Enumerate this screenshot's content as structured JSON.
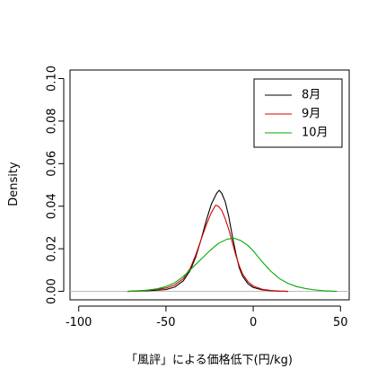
{
  "chart_data": {
    "type": "line",
    "title": "",
    "xlabel": "「風評」による価格低下(円/kg)",
    "ylabel": "Density",
    "xlim": [
      -105,
      55
    ],
    "ylim": [
      -0.004,
      0.104
    ],
    "x_ticks": [
      -100,
      -50,
      0,
      50
    ],
    "x_tick_labels": [
      "-100",
      "-50",
      "0",
      "50"
    ],
    "y_ticks": [
      0.0,
      0.02,
      0.04,
      0.06,
      0.08,
      0.1
    ],
    "y_tick_labels": [
      "0.00",
      "0.02",
      "0.04",
      "0.06",
      "0.08",
      "0.10"
    ],
    "grid": false,
    "baseline": 0,
    "legend_position": "top-right",
    "series": [
      {
        "name": "8月",
        "color": "#000000",
        "points": [
          [
            -72,
            0.0
          ],
          [
            -60,
            0.0003
          ],
          [
            -50,
            0.0008
          ],
          [
            -45,
            0.002
          ],
          [
            -40,
            0.005
          ],
          [
            -36,
            0.01
          ],
          [
            -33,
            0.016
          ],
          [
            -30,
            0.024
          ],
          [
            -27,
            0.033
          ],
          [
            -24,
            0.041
          ],
          [
            -21,
            0.046
          ],
          [
            -19.5,
            0.0475
          ],
          [
            -18,
            0.046
          ],
          [
            -16,
            0.042
          ],
          [
            -14,
            0.035
          ],
          [
            -12,
            0.026
          ],
          [
            -10,
            0.018
          ],
          [
            -8,
            0.011
          ],
          [
            -6,
            0.007
          ],
          [
            -3,
            0.0035
          ],
          [
            0,
            0.0018
          ],
          [
            5,
            0.0007
          ],
          [
            10,
            0.0003
          ],
          [
            15,
            0.0001
          ],
          [
            20,
            0.0
          ]
        ]
      },
      {
        "name": "9月",
        "color": "#dd0000",
        "points": [
          [
            -72,
            0.0
          ],
          [
            -60,
            0.0005
          ],
          [
            -50,
            0.0015
          ],
          [
            -45,
            0.003
          ],
          [
            -40,
            0.006
          ],
          [
            -36,
            0.011
          ],
          [
            -33,
            0.017
          ],
          [
            -30,
            0.024
          ],
          [
            -27,
            0.031
          ],
          [
            -24,
            0.037
          ],
          [
            -21.5,
            0.0405
          ],
          [
            -20,
            0.04
          ],
          [
            -18,
            0.038
          ],
          [
            -16,
            0.034
          ],
          [
            -14,
            0.029
          ],
          [
            -12,
            0.023
          ],
          [
            -10,
            0.017
          ],
          [
            -8,
            0.012
          ],
          [
            -6,
            0.008
          ],
          [
            -3,
            0.0045
          ],
          [
            0,
            0.0025
          ],
          [
            5,
            0.001
          ],
          [
            10,
            0.0004
          ],
          [
            15,
            0.0001
          ],
          [
            20,
            0.0
          ]
        ]
      },
      {
        "name": "10月",
        "color": "#00aa00",
        "points": [
          [
            -72,
            0.0
          ],
          [
            -65,
            0.0002
          ],
          [
            -60,
            0.0006
          ],
          [
            -55,
            0.0012
          ],
          [
            -50,
            0.0022
          ],
          [
            -45,
            0.004
          ],
          [
            -40,
            0.007
          ],
          [
            -35,
            0.011
          ],
          [
            -30,
            0.015
          ],
          [
            -25,
            0.019
          ],
          [
            -20,
            0.0225
          ],
          [
            -15,
            0.0245
          ],
          [
            -11,
            0.025
          ],
          [
            -7,
            0.0238
          ],
          [
            -3,
            0.0215
          ],
          [
            0,
            0.019
          ],
          [
            5,
            0.014
          ],
          [
            10,
            0.0095
          ],
          [
            15,
            0.006
          ],
          [
            20,
            0.0037
          ],
          [
            25,
            0.0022
          ],
          [
            30,
            0.0013
          ],
          [
            35,
            0.0007
          ],
          [
            40,
            0.0003
          ],
          [
            45,
            0.0001
          ],
          [
            48,
            0.0
          ]
        ]
      }
    ]
  }
}
